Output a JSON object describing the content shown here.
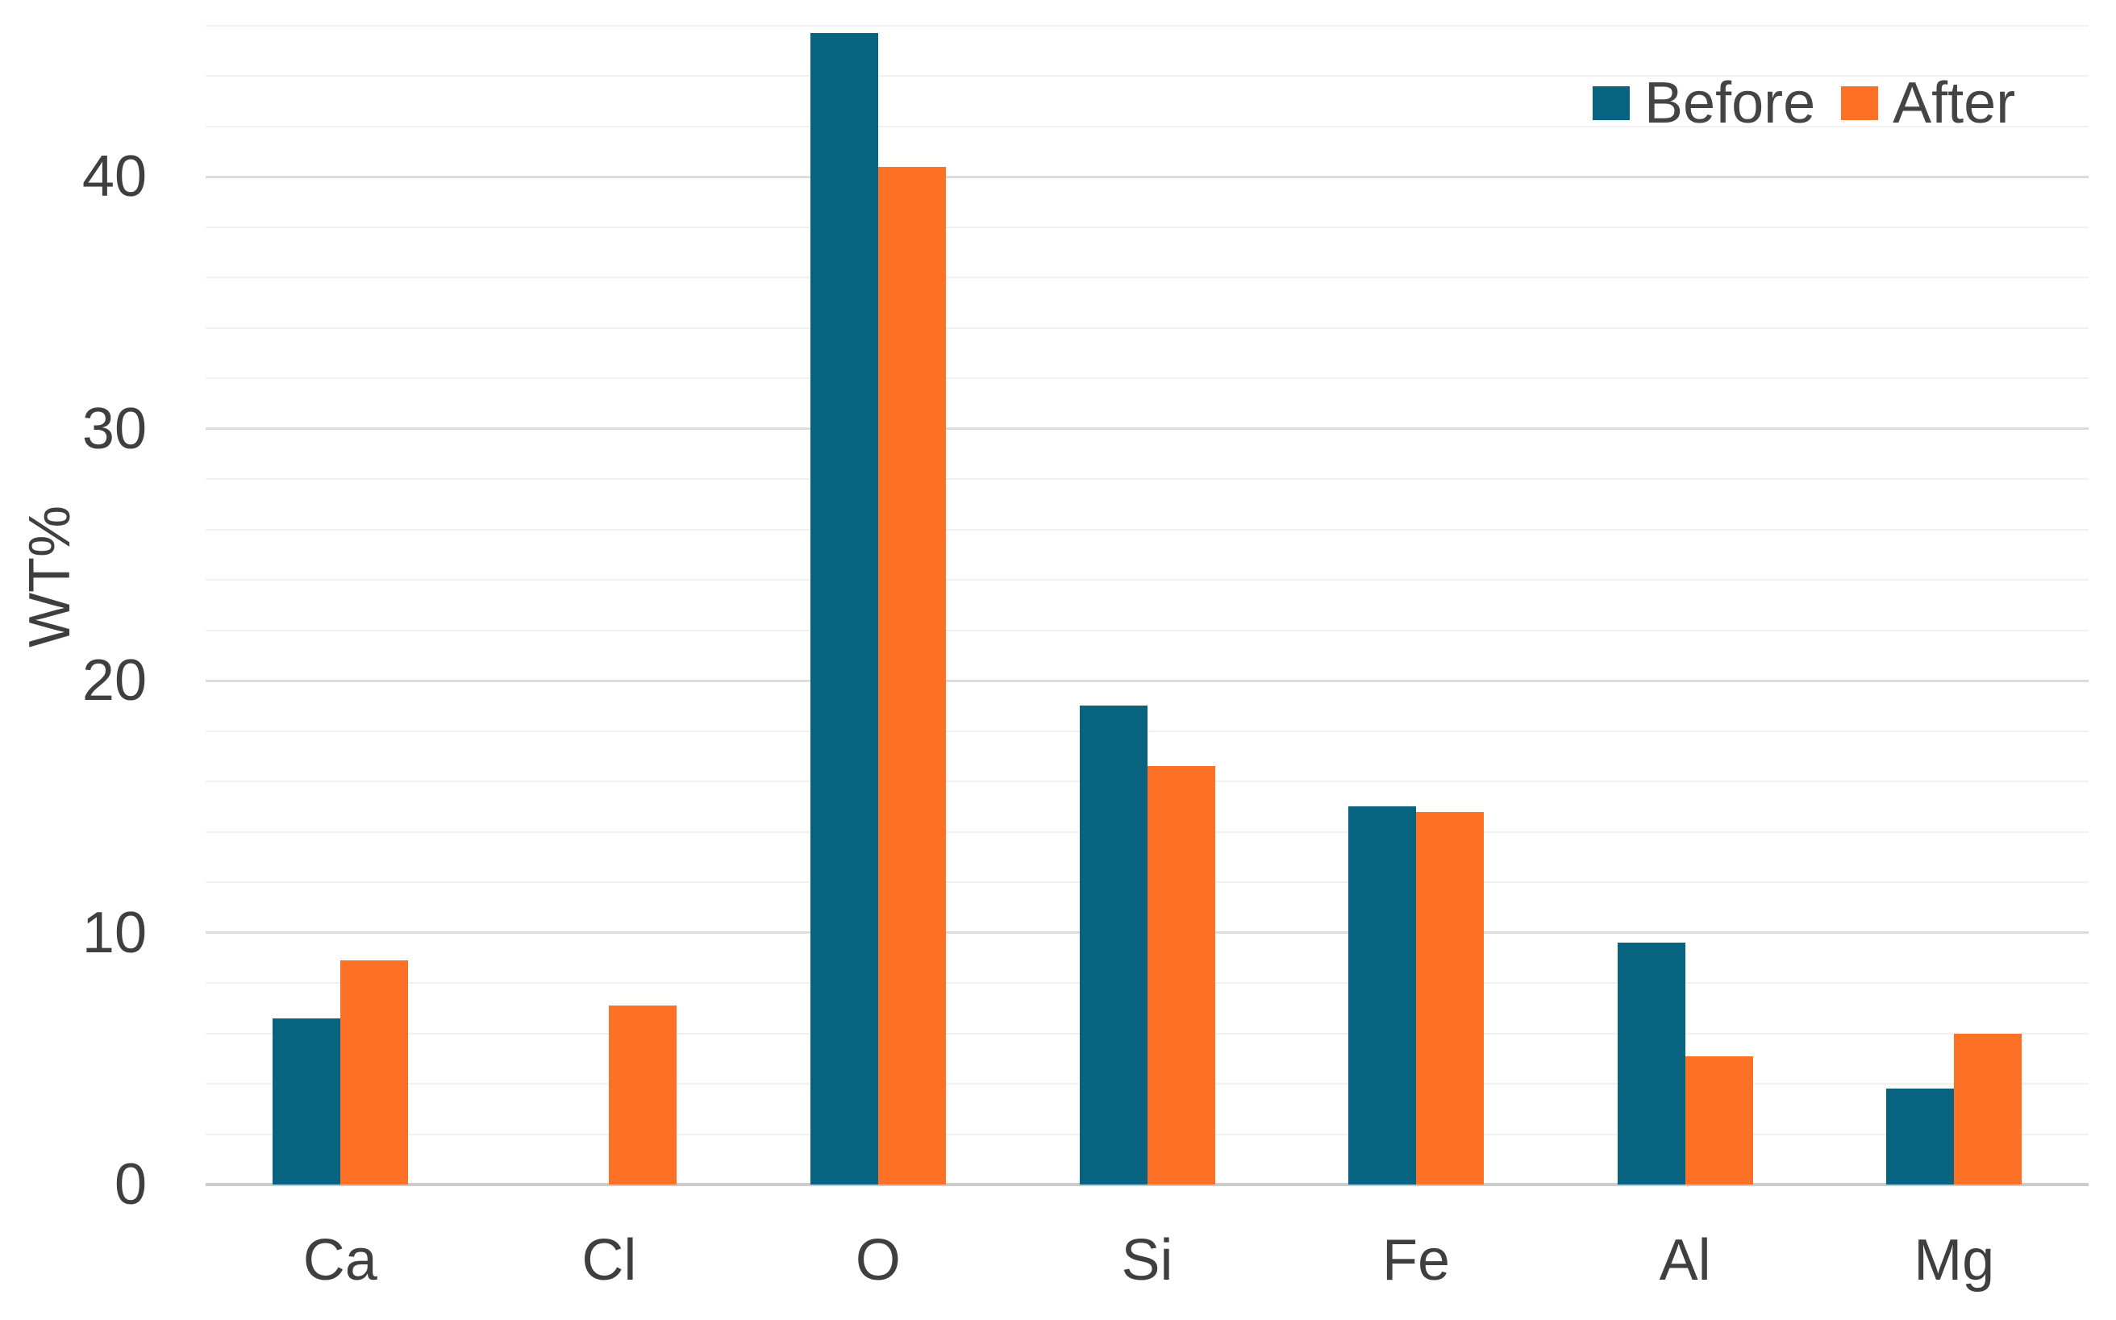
{
  "chart_data": {
    "type": "bar",
    "title": "",
    "categories": [
      "Ca",
      "Cl",
      "O",
      "Si",
      "Fe",
      "Al",
      "Mg"
    ],
    "series": [
      {
        "name": "Before",
        "color": "#076380",
        "values": [
          6.6,
          0,
          45.7,
          19.0,
          15.0,
          9.6,
          3.8
        ]
      },
      {
        "name": "After",
        "color": "#FC7126",
        "values": [
          8.9,
          7.1,
          40.4,
          16.6,
          14.8,
          5.1,
          6.0
        ]
      }
    ],
    "xlabel": "",
    "ylabel": "WT%",
    "ylim": [
      0,
      46.5
    ],
    "yticks": [
      0,
      10,
      20,
      30,
      40
    ],
    "ytick_labels": [
      "0",
      "10",
      "20",
      "30",
      "40"
    ],
    "minor_grid_step": 2,
    "grid": true,
    "legend_position": "top-right",
    "legend_labels": [
      "Before",
      "After"
    ]
  },
  "colors": {
    "before": "#076380",
    "after": "#FC7126",
    "axis_text": "#3f3f3f",
    "legend_text": "#444444",
    "grid_minor": "#f1f1f1",
    "grid_major": "#dcdcdc",
    "baseline": "#cbcbcb",
    "background": "#ffffff"
  }
}
